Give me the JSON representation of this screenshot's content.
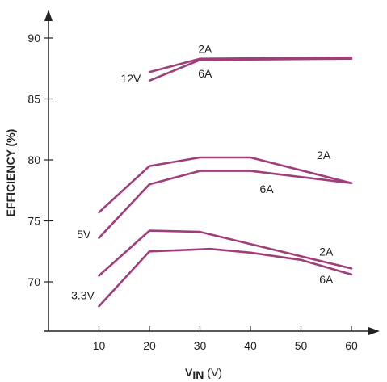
{
  "chart_data": {
    "type": "line",
    "title": "",
    "xlabel": {
      "main": "V",
      "sub": "IN",
      "unit": " (V)"
    },
    "ylabel": "EFFICIENCY (%)",
    "xlim": [
      0,
      64
    ],
    "ylim": [
      65.5,
      93
    ],
    "xticks": [
      10,
      20,
      30,
      40,
      50,
      60
    ],
    "yticks": [
      70,
      75,
      80,
      85,
      90
    ],
    "grid": false,
    "line_color": "#a03e7a",
    "axis_color": "#222222",
    "series": [
      {
        "name": "",
        "x": [
          20,
          30,
          60
        ],
        "y": [
          87.2,
          88.3,
          88.4
        ]
      },
      {
        "name": "",
        "x": [
          20,
          30,
          60
        ],
        "y": [
          86.5,
          88.2,
          88.3
        ]
      },
      {
        "name": "",
        "x": [
          10,
          20,
          30,
          40,
          60
        ],
        "y": [
          75.7,
          79.5,
          80.2,
          80.2,
          78.1
        ]
      },
      {
        "name": "",
        "x": [
          10,
          20,
          30,
          40,
          60
        ],
        "y": [
          73.6,
          78.0,
          79.1,
          79.1,
          78.1
        ]
      },
      {
        "name": "",
        "x": [
          10,
          20,
          30,
          60
        ],
        "y": [
          70.5,
          74.2,
          74.1,
          71.1
        ]
      },
      {
        "name": "",
        "x": [
          10,
          20,
          32,
          40,
          50,
          60
        ],
        "y": [
          68.0,
          72.5,
          72.7,
          72.4,
          71.8,
          70.6
        ]
      }
    ],
    "annotations": [
      {
        "text": "2A",
        "x": 31,
        "y": 89.1
      },
      {
        "text": "6A",
        "x": 31,
        "y": 87.1
      },
      {
        "text": "12V",
        "x": 16.3,
        "y": 86.7
      },
      {
        "text": "2A",
        "x": 54.5,
        "y": 80.4
      },
      {
        "text": "6A",
        "x": 43.2,
        "y": 77.6
      },
      {
        "text": "5V",
        "x": 7.0,
        "y": 73.9
      },
      {
        "text": "2A",
        "x": 55,
        "y": 72.5
      },
      {
        "text": "6A",
        "x": 55,
        "y": 70.2
      },
      {
        "text": "3.3V",
        "x": 6.8,
        "y": 68.9
      }
    ]
  }
}
